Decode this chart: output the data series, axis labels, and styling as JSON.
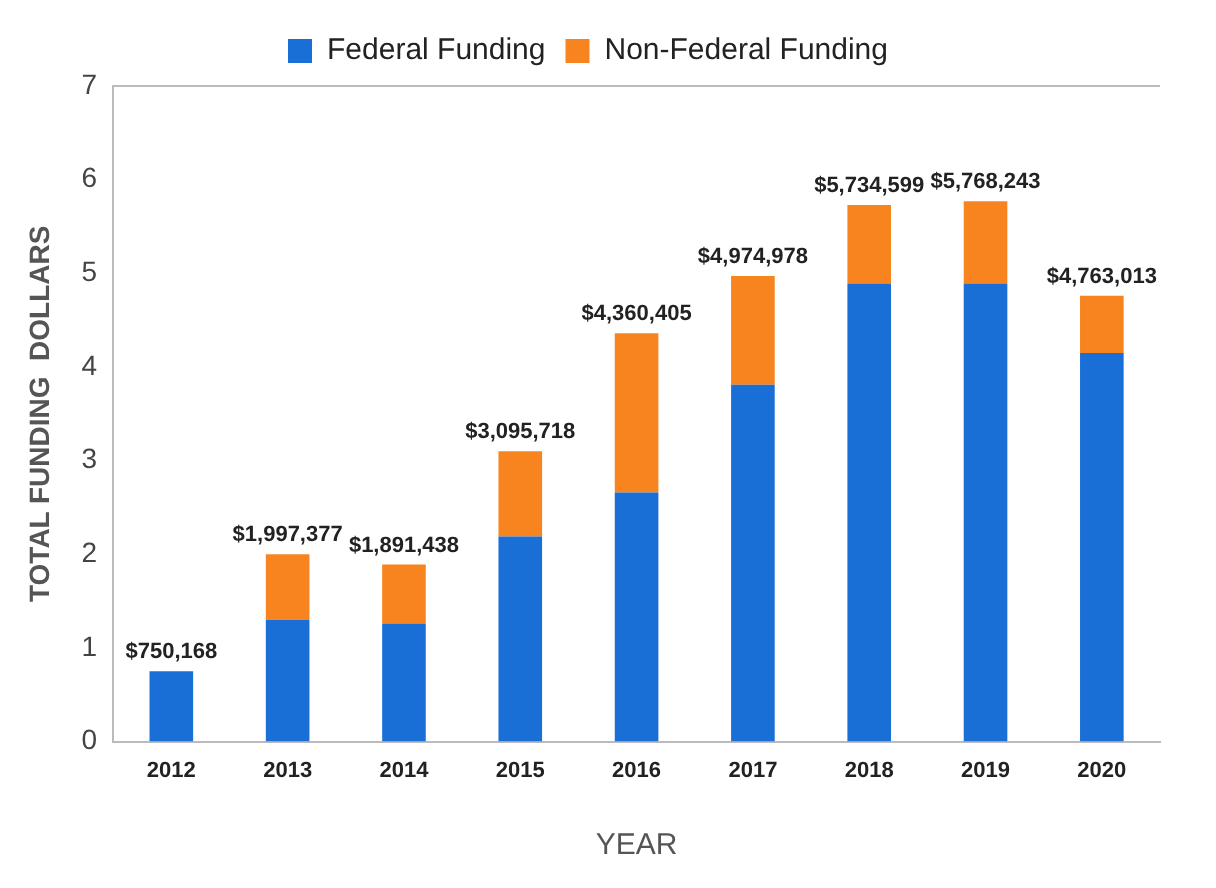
{
  "chart_data": {
    "type": "bar",
    "stacked": true,
    "xlabel": "YEAR",
    "ylabel": "TOTAL FUNDING  DOLLARS",
    "categories": [
      "2012",
      "2013",
      "2014",
      "2015",
      "2016",
      "2017",
      "2018",
      "2019",
      "2020"
    ],
    "series": [
      {
        "name": "Federal Funding",
        "color": "#1a6fd6",
        "values": [
          0.75,
          1.3,
          1.26,
          2.19,
          2.66,
          3.81,
          4.89,
          4.89,
          4.15
        ]
      },
      {
        "name": "Non-Federal Funding",
        "color": "#f7841f",
        "values": [
          null,
          0.7,
          0.63,
          0.91,
          1.7,
          1.16,
          0.84,
          0.88,
          0.61
        ]
      }
    ],
    "annotations": [
      {
        "text": "$750,168",
        "x": "2012",
        "y": 0.75
      },
      {
        "text": "$1,997,377",
        "x": "2013",
        "y": 2.0
      },
      {
        "text": "$1,891,438",
        "x": "2014",
        "y": 1.89
      },
      {
        "text": "$3,095,718",
        "x": "2015",
        "y": 3.1
      },
      {
        "text": "$4,360,405",
        "x": "2016",
        "y": 4.36
      },
      {
        "text": "$4,974,978",
        "x": "2017",
        "y": 4.97
      },
      {
        "text": "$5,734,599",
        "x": "2018",
        "y": 5.73
      },
      {
        "text": "$5,768,243",
        "x": "2019",
        "y": 5.77
      },
      {
        "text": "$4,763,013",
        "x": "2020",
        "y": 4.76
      }
    ],
    "ylim": [
      0,
      7
    ],
    "yticks": [
      0,
      1,
      2,
      3,
      4,
      5,
      6,
      7
    ],
    "grid": false,
    "legend": "top"
  }
}
